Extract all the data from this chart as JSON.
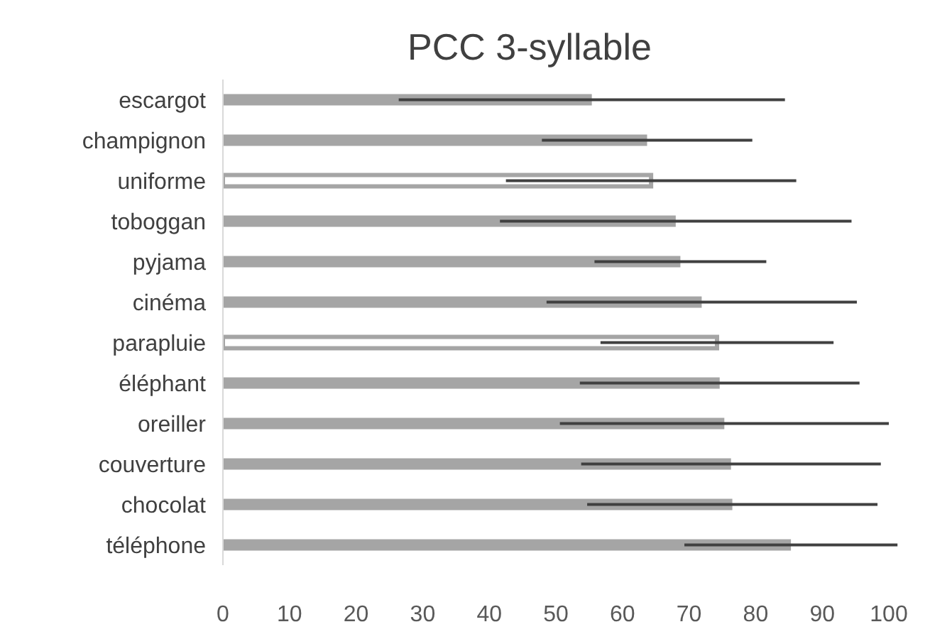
{
  "chart_data": {
    "type": "bar",
    "orientation": "horizontal",
    "title": "PCC 3-syllable",
    "categories": [
      "escargot",
      "champignon",
      "uniforme",
      "toboggan",
      "pyjama",
      "cinéma",
      "parapluie",
      "éléphant",
      "oreiller",
      "couverture",
      "chocolat",
      "téléphone"
    ],
    "series": [
      {
        "color": "#a5a5a5",
        "colors": [
          "#a5a5a5",
          "#a5a5a5",
          "#ffffff",
          "#a5a5a5",
          "#a5a5a5",
          "#a5a5a5",
          "#ffffff",
          "#a5a5a5",
          "#a5a5a5",
          "#a5a5a5",
          "#a5a5a5",
          "#a5a5a5"
        ],
        "values": [
          55.4,
          63.7,
          64.3,
          68,
          68.7,
          71.9,
          74.2,
          74.6,
          75.3,
          76.3,
          76.5,
          85.3
        ],
        "errors": [
          29,
          15.8,
          21.8,
          26.4,
          12.9,
          23.3,
          17.5,
          21,
          24.7,
          22.5,
          21.8,
          16
        ]
      }
    ],
    "xlim": [
      0,
      100
    ],
    "xticks": [
      0,
      10,
      20,
      30,
      40,
      50,
      60,
      70,
      80,
      90,
      100
    ],
    "grid": false,
    "legend": false
  }
}
